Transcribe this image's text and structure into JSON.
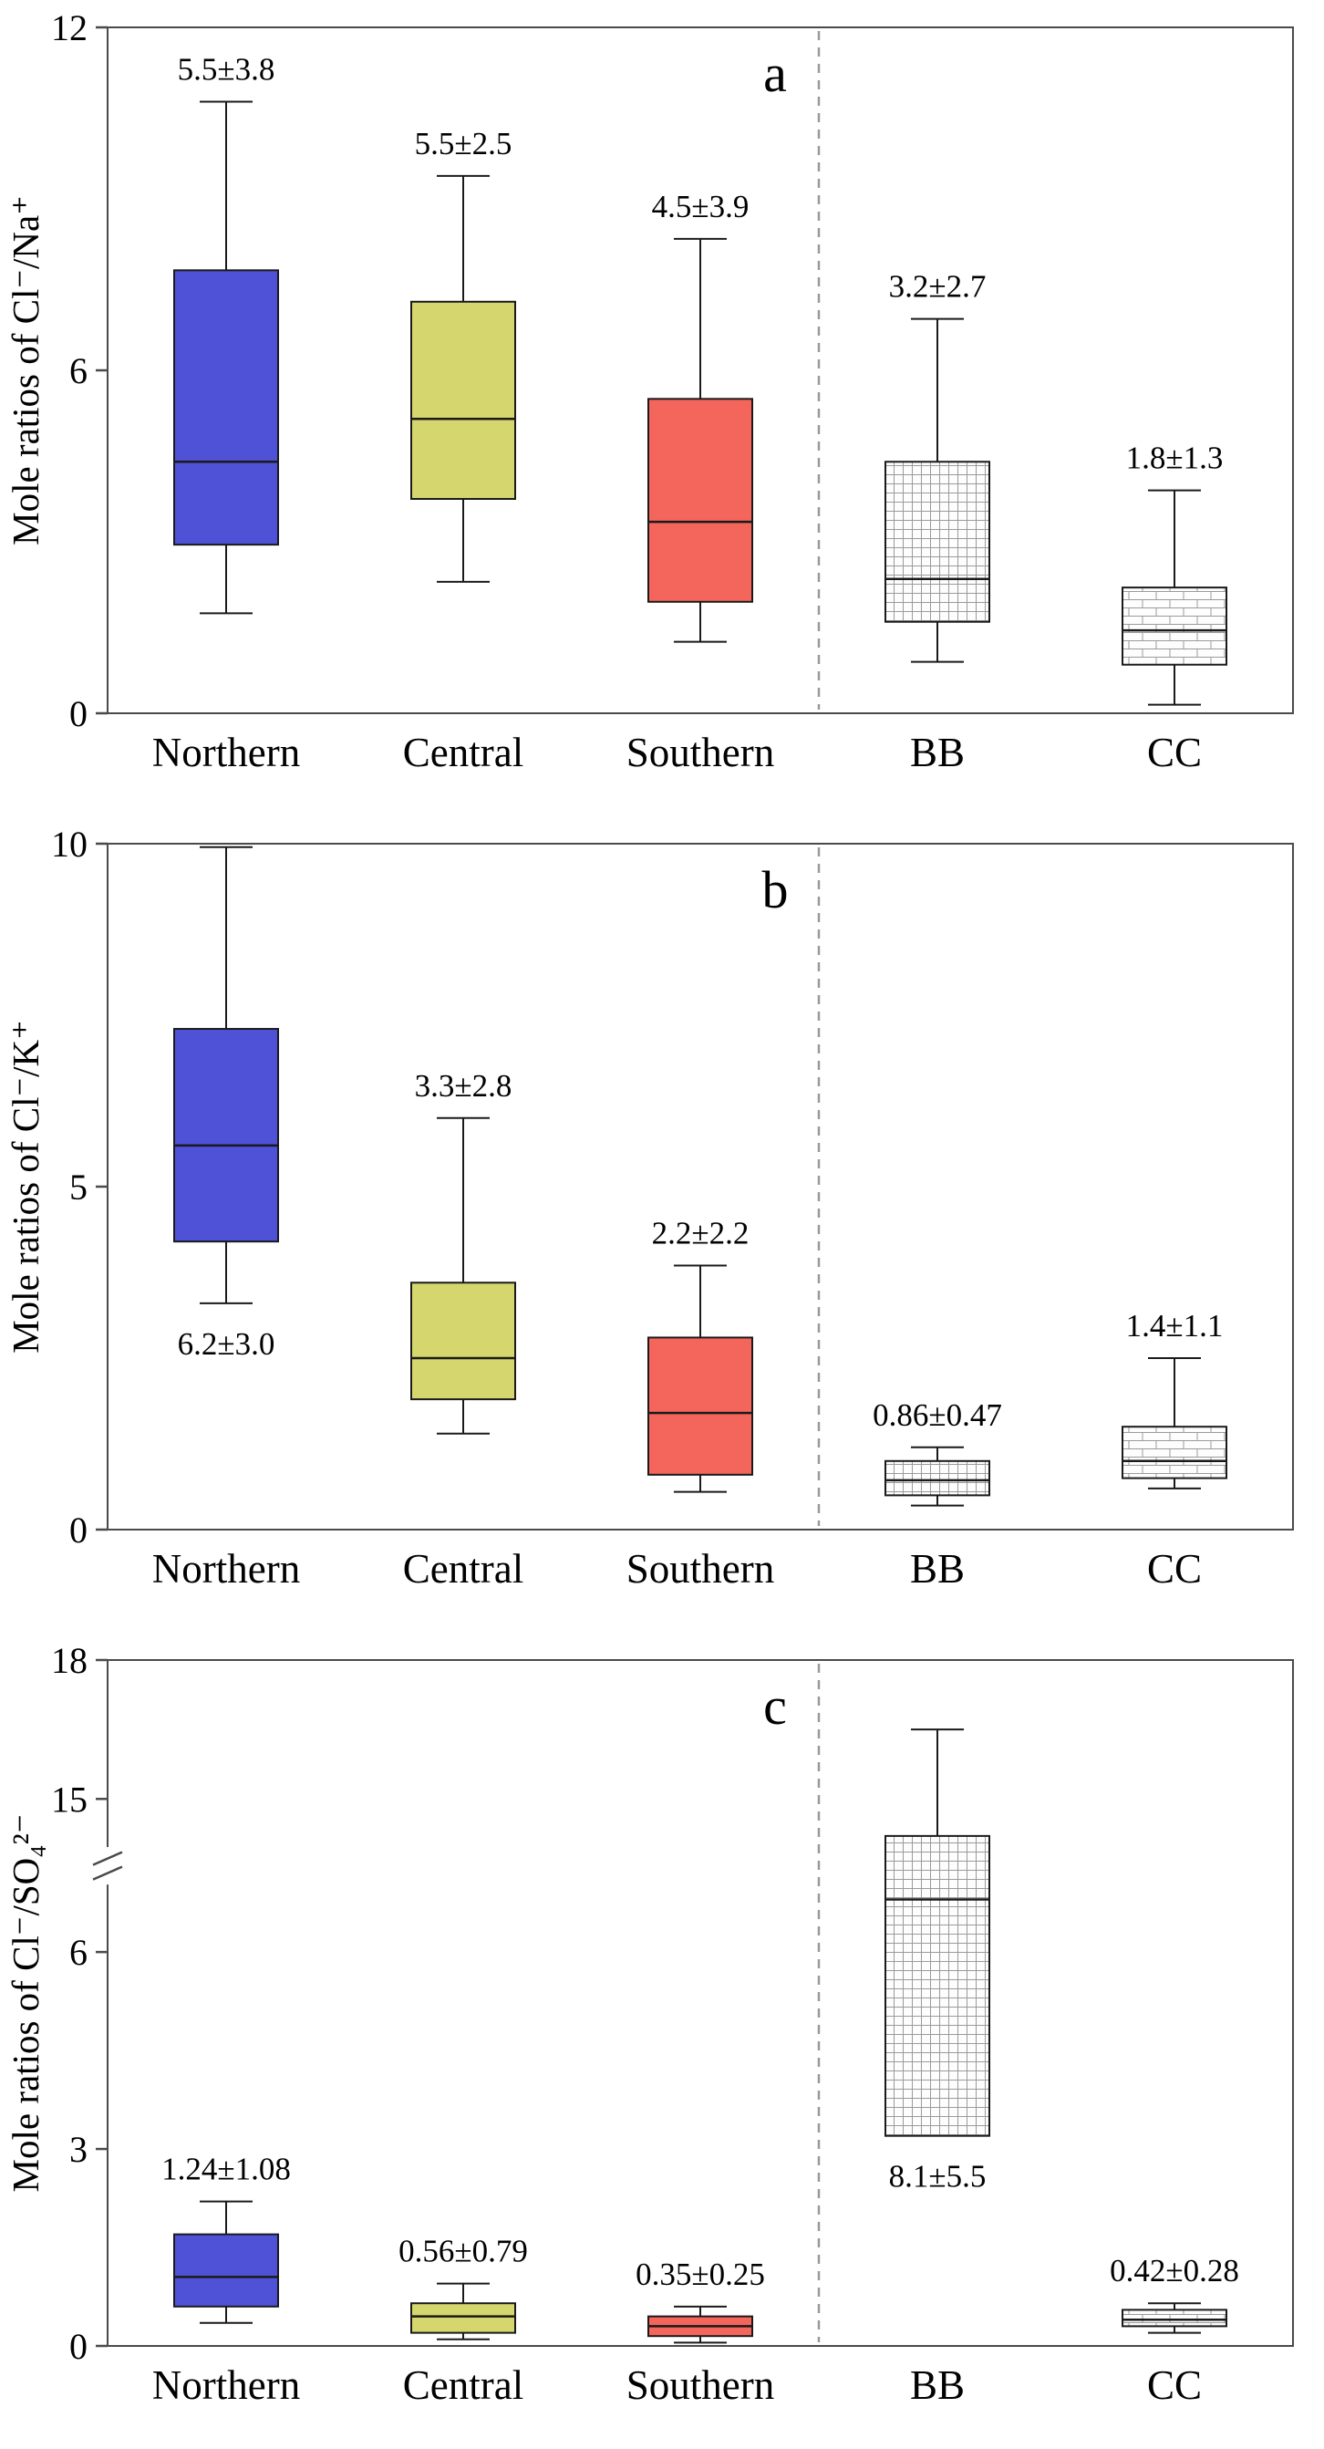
{
  "figure": {
    "background": "#ffffff"
  },
  "style": {
    "blue": "#4f52d6",
    "yellow": "#d5d66d",
    "red": "#f4655c",
    "pattern_fill": "#fdfdfd",
    "pattern_line": "#9b9b9b",
    "box_stroke": "#1a1a1a",
    "whisker": "#1a1a1a",
    "axis": "#4a4a4a",
    "separator": "#999999",
    "text": "#000000"
  },
  "chart_data": [
    {
      "type": "box",
      "panel_label": "a",
      "title": "",
      "ylabel": "Mole ratios of Cl⁻/Na⁺",
      "xlabel": "",
      "ylim": [
        0,
        12
      ],
      "yticks": [
        0,
        6,
        12
      ],
      "categories": [
        "Northern",
        "Central",
        "Southern",
        "BB",
        "CC"
      ],
      "separator_after_index": 2,
      "boxes": [
        {
          "category": "Northern",
          "style": "blue",
          "low": 1.75,
          "q1": 2.95,
          "median": 4.4,
          "q3": 7.75,
          "high": 10.7,
          "mean_sd": "5.5±3.8",
          "label_side": "top"
        },
        {
          "category": "Central",
          "style": "yellow",
          "low": 2.3,
          "q1": 3.75,
          "median": 5.15,
          "q3": 7.2,
          "high": 9.4,
          "mean_sd": "5.5±2.5",
          "label_side": "top"
        },
        {
          "category": "Southern",
          "style": "red",
          "low": 1.25,
          "q1": 1.95,
          "median": 3.35,
          "q3": 5.5,
          "high": 8.3,
          "mean_sd": "4.5±3.9",
          "label_side": "top"
        },
        {
          "category": "BB",
          "style": "grid",
          "low": 0.9,
          "q1": 1.6,
          "median": 2.35,
          "q3": 4.4,
          "high": 6.9,
          "mean_sd": "3.2±2.7",
          "label_side": "top"
        },
        {
          "category": "CC",
          "style": "brick",
          "low": 0.15,
          "q1": 0.85,
          "median": 1.45,
          "q3": 2.2,
          "high": 3.9,
          "mean_sd": "1.8±1.3",
          "label_side": "top"
        }
      ]
    },
    {
      "type": "box",
      "panel_label": "b",
      "title": "",
      "ylabel": "Mole ratios of Cl⁻/K⁺",
      "xlabel": "",
      "ylim": [
        0,
        10
      ],
      "yticks": [
        0,
        5,
        10
      ],
      "categories": [
        "Northern",
        "Central",
        "Southern",
        "BB",
        "CC"
      ],
      "separator_after_index": 2,
      "boxes": [
        {
          "category": "Northern",
          "style": "blue",
          "low": 3.3,
          "q1": 4.2,
          "median": 5.6,
          "q3": 7.3,
          "high": 9.95,
          "mean_sd": "6.2±3.0",
          "label_side": "bottom"
        },
        {
          "category": "Central",
          "style": "yellow",
          "low": 1.4,
          "q1": 1.9,
          "median": 2.5,
          "q3": 3.6,
          "high": 6.0,
          "mean_sd": "3.3±2.8",
          "label_side": "top"
        },
        {
          "category": "Southern",
          "style": "red",
          "low": 0.55,
          "q1": 0.8,
          "median": 1.7,
          "q3": 2.8,
          "high": 3.85,
          "mean_sd": "2.2±2.2",
          "label_side": "top"
        },
        {
          "category": "BB",
          "style": "grid",
          "low": 0.35,
          "q1": 0.5,
          "median": 0.72,
          "q3": 1.0,
          "high": 1.2,
          "mean_sd": "0.86±0.47",
          "label_side": "top"
        },
        {
          "category": "CC",
          "style": "brick",
          "low": 0.6,
          "q1": 0.75,
          "median": 1.0,
          "q3": 1.5,
          "high": 2.5,
          "mean_sd": "1.4±1.1",
          "label_side": "top"
        }
      ]
    },
    {
      "type": "box",
      "panel_label": "c",
      "title": "",
      "ylabel": "Mole ratios of Cl⁻/SO₄²⁻",
      "xlabel": "",
      "ylim": [
        0,
        18
      ],
      "yticks": [
        0,
        3,
        6,
        15,
        18
      ],
      "ybreak": {
        "from": 7,
        "to": 14
      },
      "categories": [
        "Northern",
        "Central",
        "Southern",
        "BB",
        "CC"
      ],
      "separator_after_index": 2,
      "boxes": [
        {
          "category": "Northern",
          "style": "blue",
          "low": 0.35,
          "q1": 0.6,
          "median": 1.05,
          "q3": 1.7,
          "high": 2.2,
          "mean_sd": "1.24±1.08",
          "label_side": "top"
        },
        {
          "category": "Central",
          "style": "yellow",
          "low": 0.1,
          "q1": 0.2,
          "median": 0.45,
          "q3": 0.65,
          "high": 0.95,
          "mean_sd": "0.56±0.79",
          "label_side": "top"
        },
        {
          "category": "Southern",
          "style": "red",
          "low": 0.05,
          "q1": 0.15,
          "median": 0.3,
          "q3": 0.45,
          "high": 0.6,
          "mean_sd": "0.35±0.25",
          "label_side": "top"
        },
        {
          "category": "BB",
          "style": "grid",
          "low": 3.2,
          "q1": 3.2,
          "median": 6.8,
          "q3": 14.2,
          "high": 16.5,
          "mean_sd": "8.1±5.5",
          "label_side": "bottom"
        },
        {
          "category": "CC",
          "style": "brick",
          "low": 0.2,
          "q1": 0.3,
          "median": 0.4,
          "q3": 0.55,
          "high": 0.65,
          "mean_sd": "0.42±0.28",
          "label_side": "top"
        }
      ]
    }
  ]
}
